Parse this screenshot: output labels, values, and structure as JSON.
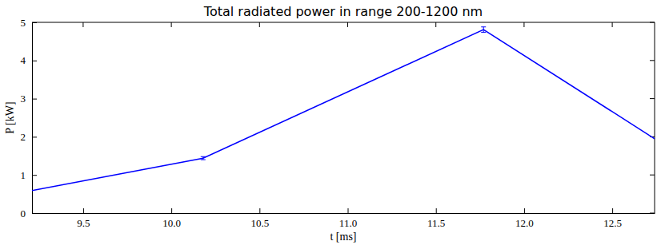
{
  "chart_data": {
    "type": "line",
    "title": "Total radiated power in range 200-1200 nm",
    "x_label": "t [ms]",
    "y_label": "P [kW]",
    "x": [
      9.21,
      10.18,
      11.77,
      12.74
    ],
    "series": [
      {
        "color": "#0000ff",
        "values": [
          0.59,
          1.44,
          4.81,
          1.95
        ],
        "errors": [
          null,
          0.04,
          0.07,
          null
        ]
      }
    ],
    "xlim": [
      9.21,
      12.74
    ],
    "ylim": [
      0,
      5
    ],
    "xticks": [
      9.5,
      {
        "value": 10,
        "label": "10.0"
      },
      10.5,
      {
        "value": 11,
        "label": "11.0"
      },
      11.5,
      {
        "value": 12,
        "label": "12.0"
      },
      12.5
    ],
    "yticks": [
      0,
      1,
      2,
      3,
      4,
      5
    ]
  }
}
